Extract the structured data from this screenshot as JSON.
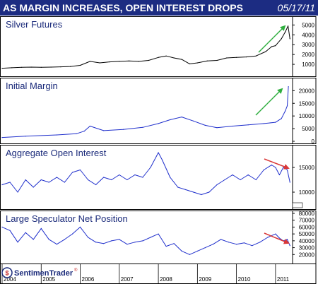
{
  "header": {
    "title": "AS MARGIN INCREASES, OPEN INTEREST DROPS",
    "date": "05/17/11"
  },
  "logo": {
    "text": "SentimenTrader",
    "sub": "®"
  },
  "colors": {
    "header_bg": "#1c2c82",
    "price_line": "#000000",
    "series_line": "#1f2fcc",
    "up_arrow": "#2fae3f",
    "down_arrow": "#d93838",
    "title_text": "#1a2a7a"
  },
  "chart_data": [
    {
      "type": "line",
      "title": "Silver Futures",
      "ylim": [
        0,
        5600
      ],
      "yticks": [
        "1000",
        "2000",
        "3000",
        "4000",
        "5000"
      ],
      "annotation": "green up arrow",
      "x": [
        2004.0,
        2004.25,
        2004.5,
        2004.75,
        2005.0,
        2005.25,
        2005.5,
        2005.75,
        2006.0,
        2006.25,
        2006.5,
        2006.75,
        2007.0,
        2007.25,
        2007.5,
        2007.75,
        2008.0,
        2008.2,
        2008.4,
        2008.6,
        2008.8,
        2009.0,
        2009.25,
        2009.5,
        2009.75,
        2010.0,
        2010.25,
        2010.5,
        2010.75,
        2010.9,
        2011.0,
        2011.15,
        2011.25,
        2011.32,
        2011.37
      ],
      "values": [
        600,
        650,
        700,
        720,
        700,
        720,
        750,
        780,
        900,
        1300,
        1150,
        1250,
        1300,
        1350,
        1300,
        1400,
        1700,
        1850,
        1650,
        1500,
        1050,
        1150,
        1350,
        1400,
        1650,
        1700,
        1750,
        1850,
        2300,
        2800,
        2900,
        3600,
        4300,
        4900,
        3600
      ]
    },
    {
      "type": "line",
      "title": "Initial Margin",
      "ylim": [
        0,
        24000
      ],
      "yticks": [
        "0",
        "5000",
        "10000",
        "15000",
        "20000"
      ],
      "annotation": "green up arrow",
      "x": [
        2004.0,
        2004.6,
        2005.4,
        2005.9,
        2006.1,
        2006.25,
        2006.6,
        2007.1,
        2007.6,
        2008.0,
        2008.3,
        2008.6,
        2008.9,
        2009.2,
        2009.5,
        2009.9,
        2010.3,
        2010.7,
        2011.0,
        2011.15,
        2011.25,
        2011.3,
        2011.33
      ],
      "values": [
        1500,
        2000,
        2500,
        3000,
        4000,
        6000,
        4200,
        4700,
        5500,
        7000,
        8500,
        9600,
        8000,
        6300,
        5400,
        6000,
        6500,
        7000,
        7500,
        9000,
        12000,
        14000,
        21600
      ]
    },
    {
      "type": "line",
      "title": "Aggregate Open Interest",
      "ylim": [
        7000,
        19000
      ],
      "yticks": [
        "10000",
        "15000"
      ],
      "annotation": "red down arrow",
      "x": [
        2004.0,
        2004.2,
        2004.4,
        2004.6,
        2004.8,
        2005.0,
        2005.2,
        2005.4,
        2005.6,
        2005.8,
        2006.0,
        2006.2,
        2006.4,
        2006.6,
        2006.8,
        2007.0,
        2007.2,
        2007.4,
        2007.6,
        2007.8,
        2008.0,
        2008.1,
        2008.3,
        2008.5,
        2008.7,
        2008.9,
        2009.1,
        2009.3,
        2009.5,
        2009.7,
        2009.9,
        2010.1,
        2010.3,
        2010.5,
        2010.7,
        2010.9,
        2011.0,
        2011.1,
        2011.2,
        2011.3,
        2011.37
      ],
      "values": [
        11500,
        12000,
        10000,
        12500,
        11000,
        12500,
        12000,
        13000,
        12000,
        14000,
        14500,
        12500,
        11500,
        13000,
        12500,
        13500,
        12500,
        13500,
        13000,
        15000,
        18000,
        16500,
        13000,
        11000,
        10500,
        10000,
        9500,
        10000,
        11500,
        12500,
        13500,
        12500,
        13500,
        12500,
        14500,
        15500,
        15000,
        13500,
        15000,
        14500,
        12000
      ]
    },
    {
      "type": "line",
      "title": "Large Speculator Net Position",
      "ylim": [
        10000,
        80000
      ],
      "yticks": [
        "20000",
        "30000",
        "40000",
        "50000",
        "60000",
        "70000",
        "80000"
      ],
      "annotation": "red down arrow",
      "x": [
        2004.0,
        2004.2,
        2004.4,
        2004.6,
        2004.8,
        2005.0,
        2005.2,
        2005.4,
        2005.6,
        2005.8,
        2006.0,
        2006.2,
        2006.4,
        2006.6,
        2006.8,
        2007.0,
        2007.2,
        2007.4,
        2007.6,
        2007.8,
        2008.0,
        2008.2,
        2008.4,
        2008.6,
        2008.8,
        2009.0,
        2009.2,
        2009.4,
        2009.6,
        2009.8,
        2010.0,
        2010.2,
        2010.4,
        2010.6,
        2010.8,
        2011.0,
        2011.1,
        2011.2,
        2011.3,
        2011.37
      ],
      "values": [
        60000,
        55000,
        38000,
        52000,
        42000,
        58000,
        42000,
        35000,
        42000,
        50000,
        60000,
        45000,
        38000,
        36000,
        40000,
        42000,
        35000,
        38000,
        40000,
        45000,
        50000,
        32000,
        36000,
        25000,
        20000,
        25000,
        30000,
        35000,
        42000,
        38000,
        35000,
        37000,
        33000,
        38000,
        45000,
        50000,
        44000,
        40000,
        42000,
        33000
      ]
    }
  ],
  "x_axis": {
    "labels": [
      "2004",
      "2005",
      "2006",
      "2007",
      "2008",
      "2009",
      "2010",
      "2011"
    ],
    "range": [
      2004.0,
      2011.4
    ]
  }
}
